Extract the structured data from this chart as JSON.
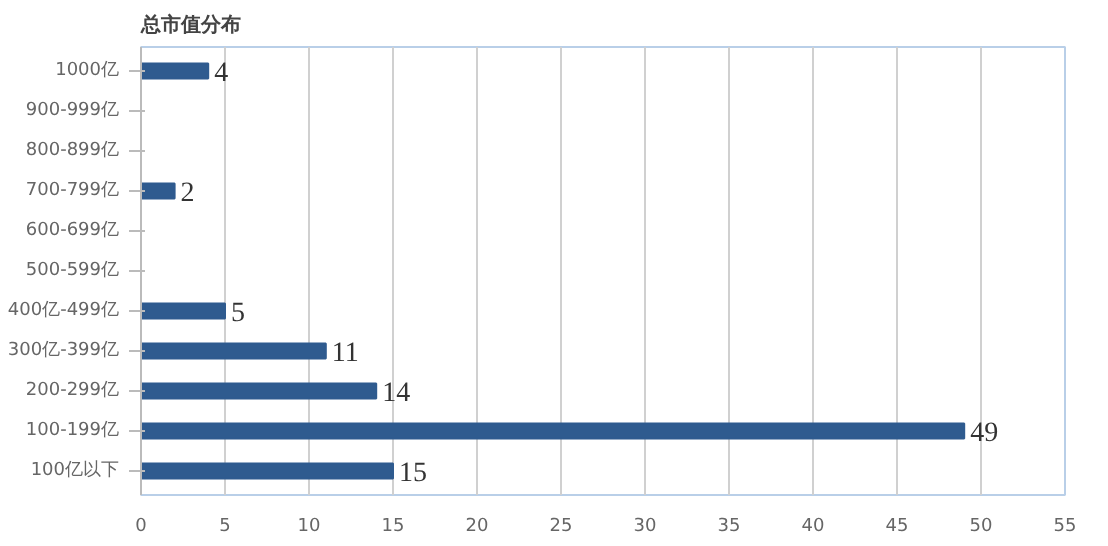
{
  "chart_data": {
    "type": "bar",
    "orientation": "horizontal",
    "title": "总市值分布",
    "categories": [
      "1000亿",
      "900-999亿",
      "800-899亿",
      "700-799亿",
      "600-699亿",
      "500-599亿",
      "400亿-499亿",
      "300亿-399亿",
      "200-299亿",
      "100-199亿",
      "100亿以下"
    ],
    "values": [
      4,
      0,
      0,
      2,
      0,
      0,
      5,
      11,
      14,
      49,
      15
    ],
    "value_labels": [
      "4",
      null,
      null,
      "2",
      null,
      null,
      "5",
      "11",
      "14",
      "49",
      "15"
    ],
    "color": "#2f5b8f",
    "xlim": [
      0,
      55
    ],
    "xticks": [
      0,
      5,
      10,
      15,
      20,
      25,
      30,
      35,
      40,
      45,
      50,
      55
    ],
    "grid": "x"
  }
}
